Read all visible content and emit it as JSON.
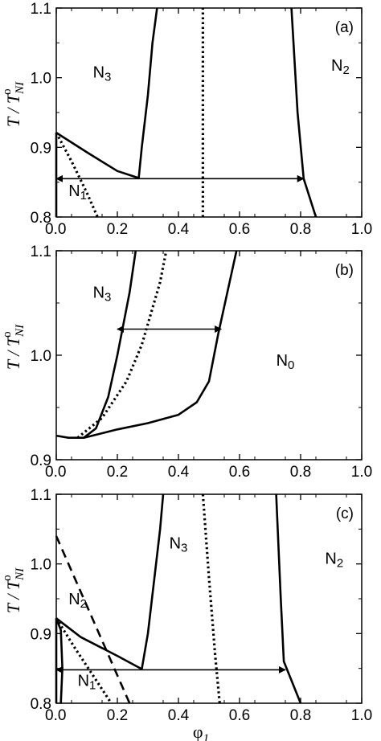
{
  "chart_data": [
    {
      "type": "line",
      "panel": "(a)",
      "xlim": [
        0.0,
        1.0
      ],
      "ylim": [
        0.8,
        1.1
      ],
      "xticks": [
        "0.0",
        "0.2",
        "0.4",
        "0.6",
        "0.8",
        "1.0"
      ],
      "yticks": [
        "0.8",
        "0.9",
        "1.0",
        "1.1"
      ],
      "ylabel": "T / T",
      "ylabel_sub": "NI",
      "ylabel_sup": "o",
      "regions": [
        {
          "label": "N3",
          "x": 0.12,
          "y": 1.0
        },
        {
          "label": "N2",
          "x": 0.9,
          "y": 1.01
        },
        {
          "label": "N1",
          "x": 0.04,
          "y": 0.83
        }
      ],
      "series": [
        {
          "style": "solid",
          "points": [
            [
              0.0,
              0.921
            ],
            [
              0.1,
              0.893
            ],
            [
              0.2,
              0.866
            ],
            [
              0.27,
              0.856
            ]
          ]
        },
        {
          "style": "solid",
          "points": [
            [
              0.27,
              0.856
            ],
            [
              0.28,
              0.9
            ],
            [
              0.3,
              0.975
            ],
            [
              0.315,
              1.05
            ],
            [
              0.33,
              1.1
            ]
          ]
        },
        {
          "style": "solid",
          "points": [
            [
              0.77,
              1.1
            ],
            [
              0.79,
              0.95
            ],
            [
              0.81,
              0.855
            ],
            [
              0.85,
              0.8
            ]
          ]
        },
        {
          "style": "solid",
          "points": [
            [
              0.0,
              0.8
            ],
            [
              0.0,
              0.921
            ]
          ]
        },
        {
          "style": "dotted",
          "points": [
            [
              0.0,
              0.921
            ],
            [
              0.05,
              0.88
            ],
            [
              0.1,
              0.835
            ],
            [
              0.135,
              0.8
            ]
          ]
        },
        {
          "style": "dotted",
          "points": [
            [
              0.48,
              0.8
            ],
            [
              0.48,
              1.1
            ]
          ]
        }
      ],
      "arrows": [
        {
          "from": [
            0.0,
            0.855
          ],
          "to": [
            0.81,
            0.855
          ]
        }
      ]
    },
    {
      "type": "line",
      "panel": "(b)",
      "xlim": [
        0.0,
        1.0
      ],
      "ylim": [
        0.9,
        1.1
      ],
      "xticks": [
        "0.0",
        "0.2",
        "0.4",
        "0.6",
        "0.8",
        "1.0"
      ],
      "yticks": [
        "0.9",
        "1.0",
        "1.1"
      ],
      "ylabel": "T / T",
      "ylabel_sub": "NI",
      "ylabel_sup": "o",
      "regions": [
        {
          "label": "N3",
          "x": 0.12,
          "y": 1.055
        },
        {
          "label": "N0",
          "x": 0.72,
          "y": 0.99
        }
      ],
      "series": [
        {
          "style": "solid",
          "points": [
            [
              0.0,
              0.923
            ],
            [
              0.04,
              0.921
            ],
            [
              0.09,
              0.921
            ],
            [
              0.13,
              0.93
            ],
            [
              0.17,
              0.96
            ],
            [
              0.2,
              1.0
            ],
            [
              0.22,
              1.03
            ],
            [
              0.24,
              1.06
            ],
            [
              0.26,
              1.1
            ]
          ]
        },
        {
          "style": "solid",
          "points": [
            [
              0.09,
              0.921
            ],
            [
              0.2,
              0.929
            ],
            [
              0.3,
              0.935
            ],
            [
              0.4,
              0.943
            ],
            [
              0.46,
              0.955
            ],
            [
              0.5,
              0.975
            ],
            [
              0.53,
              1.02
            ],
            [
              0.56,
              1.06
            ],
            [
              0.59,
              1.1
            ]
          ]
        },
        {
          "style": "dotted",
          "points": [
            [
              0.07,
              0.921
            ],
            [
              0.15,
              0.94
            ],
            [
              0.23,
              0.975
            ],
            [
              0.28,
              1.01
            ],
            [
              0.31,
              1.04
            ],
            [
              0.34,
              1.07
            ],
            [
              0.36,
              1.1
            ]
          ]
        }
      ],
      "arrows": [
        {
          "from": [
            0.2,
            1.025
          ],
          "to": [
            0.54,
            1.025
          ]
        }
      ]
    },
    {
      "type": "line",
      "panel": "(c)",
      "xlim": [
        0.0,
        1.0
      ],
      "ylim": [
        0.8,
        1.1
      ],
      "xticks": [
        "0.0",
        "0.2",
        "0.4",
        "0.6",
        "0.8",
        "1.0"
      ],
      "yticks": [
        "0.8",
        "0.9",
        "1.0",
        "1.1"
      ],
      "ylabel": "T / T",
      "ylabel_sub": "NI",
      "ylabel_sup": "o",
      "xlabel": "φ",
      "xlabel_sub": "1",
      "regions": [
        {
          "label": "N3",
          "x": 0.37,
          "y": 1.022
        },
        {
          "label": "N2",
          "x": 0.88,
          "y": 1.0
        },
        {
          "label": "N2",
          "x": 0.04,
          "y": 0.942
        },
        {
          "label": "N1",
          "x": 0.07,
          "y": 0.825
        }
      ],
      "series": [
        {
          "style": "solid",
          "points": [
            [
              0.0,
              0.922
            ],
            [
              0.08,
              0.895
            ],
            [
              0.2,
              0.868
            ],
            [
              0.28,
              0.849
            ]
          ]
        },
        {
          "style": "solid",
          "points": [
            [
              0.28,
              0.849
            ],
            [
              0.3,
              0.9
            ],
            [
              0.32,
              0.975
            ],
            [
              0.34,
              1.05
            ],
            [
              0.35,
              1.1
            ]
          ]
        },
        {
          "style": "solid",
          "points": [
            [
              0.72,
              1.1
            ],
            [
              0.735,
              0.95
            ],
            [
              0.745,
              0.86
            ],
            [
              0.8,
              0.8
            ]
          ]
        },
        {
          "style": "solid",
          "points": [
            [
              0.0,
              0.922
            ],
            [
              0.015,
              0.905
            ],
            [
              0.02,
              0.85
            ],
            [
              0.015,
              0.8
            ]
          ]
        },
        {
          "style": "solid",
          "points": [
            [
              0.0,
              0.8
            ],
            [
              0.0,
              0.922
            ]
          ]
        },
        {
          "style": "dotted",
          "points": [
            [
              0.0,
              0.922
            ],
            [
              0.06,
              0.88
            ],
            [
              0.12,
              0.84
            ],
            [
              0.18,
              0.8
            ]
          ]
        },
        {
          "style": "dotted",
          "points": [
            [
              0.48,
              1.1
            ],
            [
              0.5,
              0.98
            ],
            [
              0.52,
              0.87
            ],
            [
              0.535,
              0.8
            ]
          ]
        },
        {
          "style": "dashed",
          "points": [
            [
              0.0,
              1.04
            ],
            [
              0.24,
              0.8
            ]
          ]
        }
      ],
      "arrows": [
        {
          "from": [
            0.0,
            0.848
          ],
          "to": [
            0.75,
            0.848
          ]
        }
      ]
    }
  ]
}
